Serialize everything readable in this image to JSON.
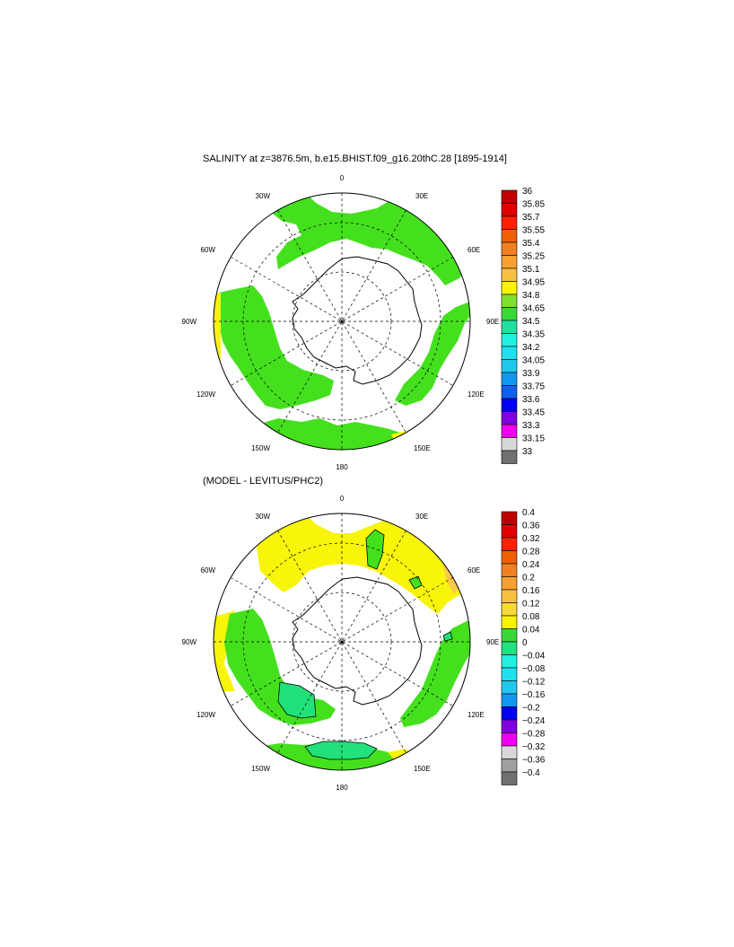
{
  "colors": {
    "land": "#ffffff",
    "masked": "#ffffff",
    "green": "#44e01e",
    "yellow": "#f8f40a",
    "aqua_green": "#22e07a",
    "orange_light": "#f8c84a"
  },
  "panels": [
    {
      "title": "SALINITY at z=3876.5m, b.e15.BHIST.f09_g16.20thC.28 [1895-1914]",
      "lon_labels": [
        "0",
        "30E",
        "60E",
        "90E",
        "120E",
        "150E",
        "180",
        "150W",
        "120W",
        "90W",
        "60W",
        "30W"
      ]
    },
    {
      "title": "(MODEL - LEVITUS/PHC2)",
      "lon_labels": [
        "0",
        "30E",
        "60E",
        "90E",
        "120E",
        "150E",
        "180",
        "150W",
        "120W",
        "90W",
        "60W",
        "30W"
      ]
    }
  ],
  "chart_data": [
    {
      "type": "heatmap",
      "projection": "south-polar-stereographic",
      "title": "SALINITY at z=3876.5m, b.e15.BHIST.f09_g16.20thC.28 [1895-1914]",
      "colorbar": {
        "labels": [
          "36",
          "35.85",
          "35.7",
          "35.55",
          "35.4",
          "35.25",
          "35.1",
          "34.95",
          "34.8",
          "34.65",
          "34.5",
          "34.35",
          "34.2",
          "34.05",
          "33.9",
          "33.75",
          "33.6",
          "33.45",
          "33.3",
          "33.15",
          "33"
        ],
        "colors": [
          "#c00000",
          "#e00000",
          "#ff2000",
          "#f06000",
          "#f08020",
          "#f8a030",
          "#f8c040",
          "#f8f400",
          "#80e030",
          "#38d838",
          "#20e0a0",
          "#20f0e0",
          "#20e0f0",
          "#20c8f0",
          "#1098f0",
          "#1060f0",
          "#0000f0",
          "#8000e0",
          "#f000f0",
          "#d8d8d8",
          "#707070"
        ]
      },
      "dominant_value_range": [
        "34.8",
        "34.95"
      ],
      "grid": true
    },
    {
      "type": "heatmap",
      "projection": "south-polar-stereographic",
      "title": "(MODEL - LEVITUS/PHC2)",
      "colorbar": {
        "labels": [
          "0.4",
          "0.36",
          "0.32",
          "0.28",
          "0.24",
          "0.2",
          "0.16",
          "0.12",
          "0.08",
          "0.04",
          "0",
          "−0.04",
          "−0.08",
          "−0.12",
          "−0.16",
          "−0.2",
          "−0.24",
          "−0.28",
          "−0.32",
          "−0.36",
          "−0.4"
        ],
        "colors": [
          "#c00000",
          "#e00000",
          "#ff2000",
          "#f06000",
          "#f08020",
          "#f8a030",
          "#f8c040",
          "#f8d838",
          "#f8f400",
          "#38d838",
          "#20e080",
          "#20f0e0",
          "#20e0f0",
          "#20c8f0",
          "#1098f0",
          "#0000f0",
          "#8000e0",
          "#f000f0",
          "#d8d8d8",
          "#a0a0a0",
          "#707070"
        ]
      },
      "grid": true
    }
  ]
}
